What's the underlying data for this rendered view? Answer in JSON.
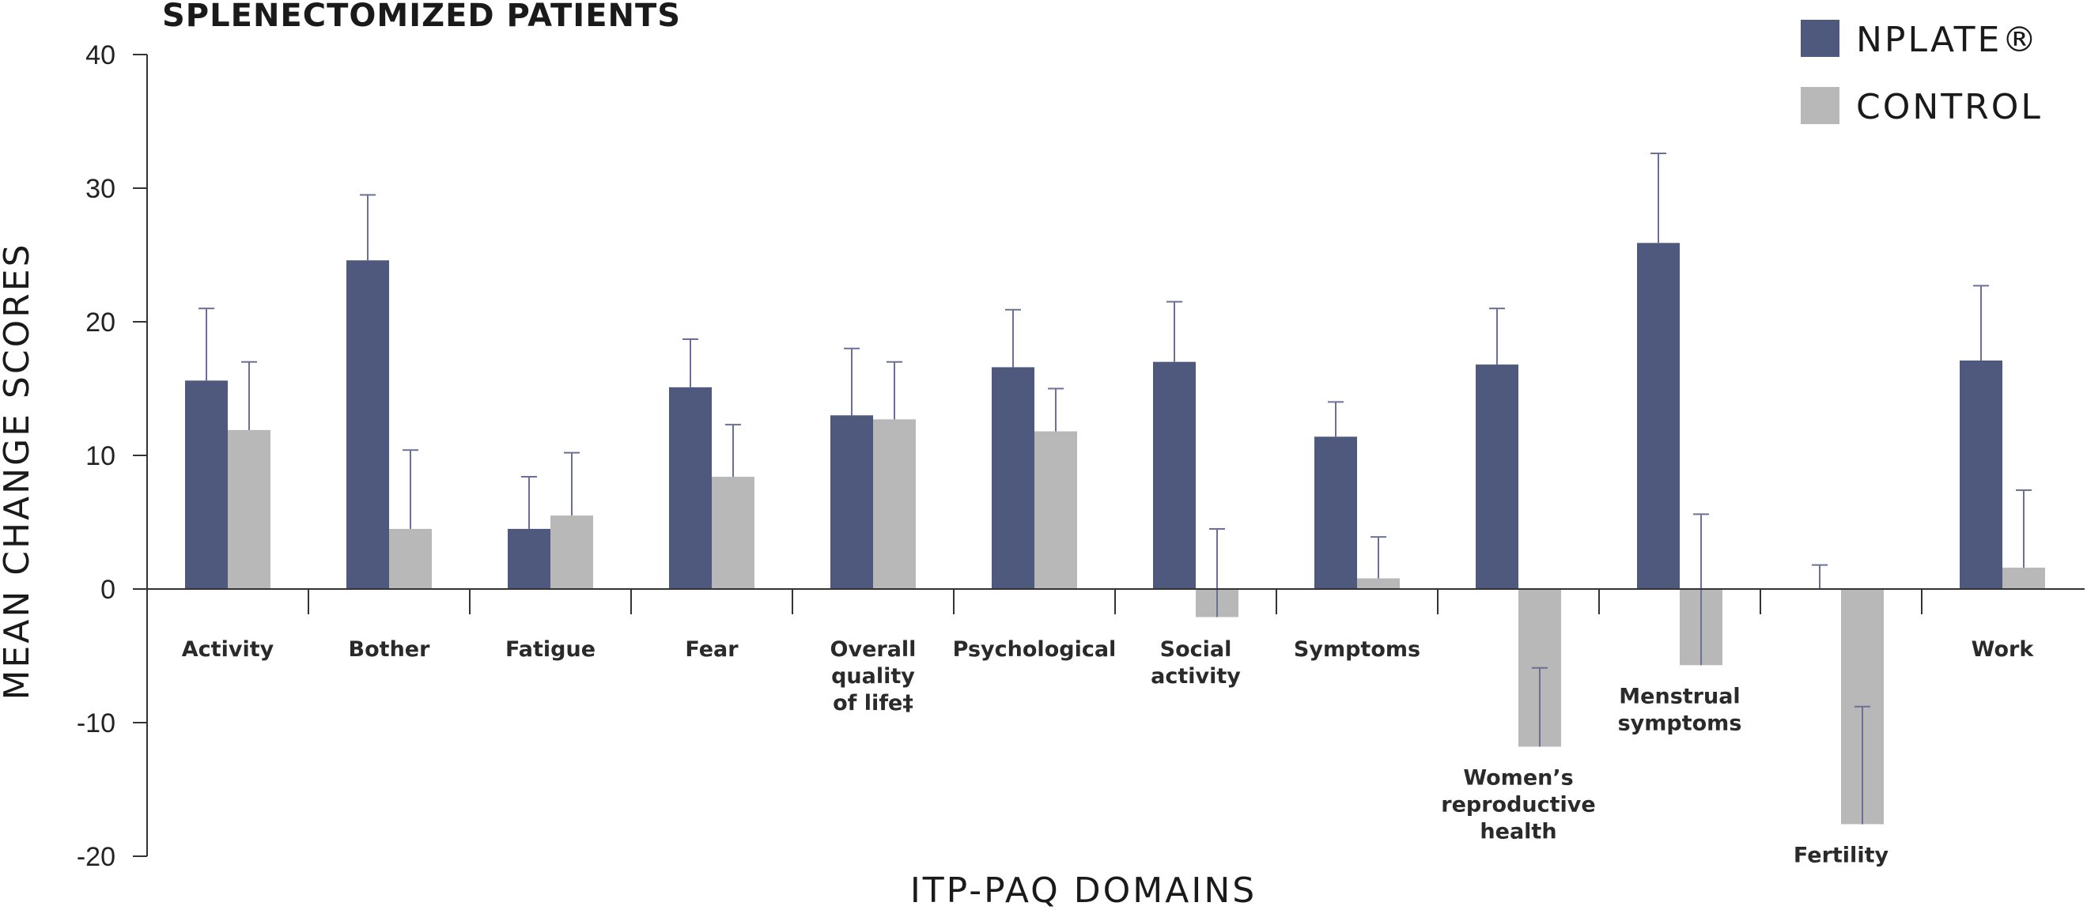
{
  "chart_data": {
    "type": "bar",
    "title": "SPLENECTOMIZED PATIENTS",
    "xlabel": "ITP-PAQ DOMAINS",
    "ylabel": "MEAN CHANGE SCORES",
    "ylim": [
      -20,
      40
    ],
    "yticks": [
      "40",
      "30",
      "20",
      "10",
      "0",
      "-10",
      "-20"
    ],
    "ytick_values": [
      40,
      30,
      20,
      10,
      0,
      -10,
      -20
    ],
    "categories": [
      [
        "Activity"
      ],
      [
        "Bother"
      ],
      [
        "Fatigue"
      ],
      [
        "Fear"
      ],
      [
        "Overall",
        "quality",
        "of life‡"
      ],
      [
        "Psychological"
      ],
      [
        "Social",
        "activity"
      ],
      [
        "Symptoms"
      ],
      [
        "Women’s",
        "reproductive",
        "health"
      ],
      [
        "Menstrual",
        "symptoms"
      ],
      [
        "Fertility"
      ],
      [
        "Work"
      ]
    ],
    "series": [
      {
        "name": "NPLATE®",
        "color": "#4f597e",
        "values": [
          15.6,
          24.6,
          4.5,
          15.1,
          13.0,
          16.6,
          17.0,
          11.4,
          16.8,
          25.9,
          0,
          17.1
        ],
        "error_upper": [
          21.0,
          29.5,
          8.4,
          18.7,
          18.0,
          20.9,
          21.5,
          14.0,
          21.0,
          32.6,
          1.8,
          22.7
        ],
        "error_lower": [
          null,
          null,
          null,
          null,
          null,
          null,
          null,
          null,
          null,
          null,
          null,
          null
        ]
      },
      {
        "name": "CONTROL",
        "color": "#b8b8b8",
        "values": [
          11.9,
          4.5,
          5.5,
          8.4,
          12.7,
          11.8,
          -2.1,
          0.8,
          -11.8,
          -5.7,
          -17.6,
          1.6
        ],
        "error_upper": [
          17.0,
          10.4,
          10.2,
          12.3,
          17.0,
          15.0,
          4.5,
          3.9,
          null,
          5.6,
          null,
          7.4
        ],
        "error_lower": [
          null,
          null,
          null,
          null,
          null,
          null,
          null,
          null,
          -5.9,
          null,
          -8.8,
          null
        ]
      }
    ],
    "legend_position": "top-right",
    "grid": false
  }
}
